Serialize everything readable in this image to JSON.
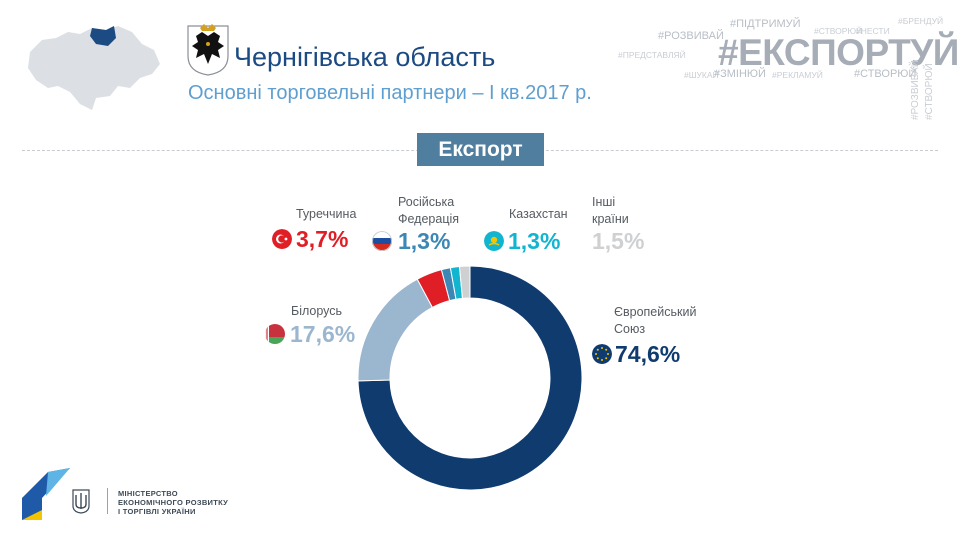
{
  "header": {
    "title": "Чернігівська область",
    "subtitle": "Основні торговельні партнери – І кв.2017 р."
  },
  "hashtags": {
    "main": "#ЕКСПОРТУЙ",
    "tags": [
      "#ПІДТРИМУЙ",
      "#БРЕНДУЙ",
      "#СТВОРЮЙ",
      "#НЕСТИ",
      "#РОЗВИВАЙ",
      "#ПРЕДСТАВЛЯЙ",
      "#ШУКАЙ",
      "#ЗМІНЮЙ",
      "#РЕКЛАМУЙ",
      "#СТВОРЮЙ",
      "#РОЗВИВАЙ",
      "#СТВОРЮЙ"
    ]
  },
  "section_label": "Експорт",
  "chart_data": {
    "type": "pie",
    "title": "Експорт",
    "donut": true,
    "start": "top, clockwise",
    "labels": [
      "Європейський Союз",
      "Білорусь",
      "Туреччина",
      "Російська Федерація",
      "Казахстан",
      "Інші країни"
    ],
    "values": [
      74.6,
      17.6,
      3.7,
      1.3,
      1.3,
      1.5
    ],
    "value_labels": [
      "74,6%",
      "17,6%",
      "3,7%",
      "1,3%",
      "1,3%",
      "1,5%"
    ],
    "colors": [
      "#0f3b6e",
      "#9bb6cf",
      "#e01e26",
      "#3b87b5",
      "#12b5cf",
      "#cfd0d2"
    ],
    "label_lines": [
      [
        "Європейський",
        "Союз"
      ],
      [
        "Білорусь"
      ],
      [
        "Туреччина"
      ],
      [
        "Російська",
        "Федерація"
      ],
      [
        "Казахстан"
      ],
      [
        "Інші",
        "країни"
      ]
    ],
    "flags": [
      "eu-flag-icon",
      "belarus-flag-icon",
      "turkey-flag-icon",
      "russia-flag-icon",
      "kazakhstan-flag-icon",
      ""
    ]
  },
  "footer": {
    "ministry_lines": [
      "МІНІСТЕРСТВО",
      "ЕКОНОМІЧНОГО РОЗВИТКУ",
      "І ТОРГІВЛІ УКРАЇНИ"
    ]
  }
}
